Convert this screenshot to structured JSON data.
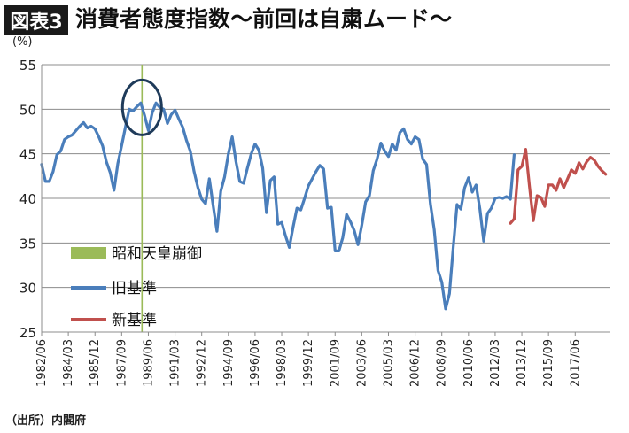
{
  "header": {
    "badge": "図表3",
    "title": "消費者態度指数～前回は自粛ムード～"
  },
  "source": "（出所）内閣府",
  "colors": {
    "old": "#4a7ebb",
    "new": "#c0504d",
    "event": "#9bbb59",
    "circle": "#1f3b5a"
  },
  "chart_data": {
    "type": "line",
    "ylabel": "(%)",
    "ylim": [
      25,
      55
    ],
    "yticks": [
      25,
      30,
      35,
      40,
      45,
      50,
      55
    ],
    "grid": true,
    "x_range": [
      "1982-06",
      "2019-09"
    ],
    "xticks": [
      "1982/06",
      "1984/03",
      "1985/12",
      "1987/09",
      "1989/06",
      "1991/03",
      "1992/12",
      "1994/09",
      "1996/06",
      "1998/03",
      "1999/12",
      "2001/09",
      "2003/06",
      "2005/03",
      "2006/12",
      "2008/09",
      "2010/06",
      "2012/03",
      "2013/12",
      "2015/09",
      "2017/06"
    ],
    "legend": [
      {
        "key": "event",
        "label": "昭和天皇崩御"
      },
      {
        "key": "old",
        "label": "旧基準"
      },
      {
        "key": "new",
        "label": "新基準"
      }
    ],
    "event": {
      "date": "1989-01"
    },
    "annotation": {
      "shape": "ellipse",
      "around": "1989-01",
      "value": 50.2
    },
    "series": [
      {
        "key": "old",
        "name": "旧基準",
        "points": [
          [
            "1982-06",
            43.8
          ],
          [
            "1982-09",
            41.9
          ],
          [
            "1982-12",
            41.9
          ],
          [
            "1983-03",
            43.0
          ],
          [
            "1983-06",
            44.9
          ],
          [
            "1983-09",
            45.3
          ],
          [
            "1983-12",
            46.6
          ],
          [
            "1984-03",
            46.9
          ],
          [
            "1984-06",
            47.1
          ],
          [
            "1984-09",
            47.6
          ],
          [
            "1984-12",
            48.1
          ],
          [
            "1985-03",
            48.5
          ],
          [
            "1985-06",
            47.9
          ],
          [
            "1985-09",
            48.1
          ],
          [
            "1985-12",
            47.8
          ],
          [
            "1986-03",
            46.9
          ],
          [
            "1986-06",
            45.9
          ],
          [
            "1986-09",
            44.1
          ],
          [
            "1986-12",
            42.9
          ],
          [
            "1987-03",
            40.9
          ],
          [
            "1987-06",
            43.9
          ],
          [
            "1987-09",
            45.9
          ],
          [
            "1987-12",
            48.0
          ],
          [
            "1988-03",
            50.0
          ],
          [
            "1988-06",
            49.8
          ],
          [
            "1988-09",
            50.3
          ],
          [
            "1988-12",
            50.7
          ],
          [
            "1989-03",
            49.3
          ],
          [
            "1989-06",
            47.6
          ],
          [
            "1989-09",
            49.6
          ],
          [
            "1989-12",
            50.7
          ],
          [
            "1990-03",
            50.2
          ],
          [
            "1990-06",
            50.0
          ],
          [
            "1990-09",
            48.4
          ],
          [
            "1990-12",
            49.4
          ],
          [
            "1991-03",
            49.9
          ],
          [
            "1991-06",
            48.9
          ],
          [
            "1991-09",
            48.0
          ],
          [
            "1991-12",
            46.5
          ],
          [
            "1992-03",
            45.3
          ],
          [
            "1992-06",
            43.0
          ],
          [
            "1992-09",
            41.2
          ],
          [
            "1992-12",
            39.9
          ],
          [
            "1993-03",
            39.4
          ],
          [
            "1993-06",
            42.2
          ],
          [
            "1993-09",
            39.2
          ],
          [
            "1993-12",
            36.3
          ],
          [
            "1994-03",
            40.8
          ],
          [
            "1994-06",
            42.4
          ],
          [
            "1994-09",
            45.0
          ],
          [
            "1994-12",
            46.9
          ],
          [
            "1995-03",
            44.1
          ],
          [
            "1995-06",
            41.9
          ],
          [
            "1995-09",
            41.7
          ],
          [
            "1995-12",
            43.4
          ],
          [
            "1996-03",
            45.0
          ],
          [
            "1996-06",
            46.1
          ],
          [
            "1996-09",
            45.4
          ],
          [
            "1996-12",
            43.4
          ],
          [
            "1997-03",
            38.4
          ],
          [
            "1997-06",
            42.0
          ],
          [
            "1997-09",
            42.4
          ],
          [
            "1997-12",
            37.1
          ],
          [
            "1998-03",
            37.3
          ],
          [
            "1998-06",
            35.8
          ],
          [
            "1998-09",
            34.5
          ],
          [
            "1998-12",
            36.8
          ],
          [
            "1999-03",
            38.9
          ],
          [
            "1999-06",
            38.7
          ],
          [
            "1999-09",
            40.0
          ],
          [
            "1999-12",
            41.4
          ],
          [
            "2000-03",
            42.2
          ],
          [
            "2000-06",
            43.0
          ],
          [
            "2000-09",
            43.7
          ],
          [
            "2000-12",
            43.3
          ],
          [
            "2001-03",
            38.9
          ],
          [
            "2001-06",
            39.0
          ],
          [
            "2001-09",
            34.1
          ],
          [
            "2001-12",
            34.1
          ],
          [
            "2002-03",
            35.6
          ],
          [
            "2002-06",
            38.2
          ],
          [
            "2002-09",
            37.4
          ],
          [
            "2002-12",
            36.4
          ],
          [
            "2003-03",
            34.8
          ],
          [
            "2003-06",
            37.0
          ],
          [
            "2003-09",
            39.6
          ],
          [
            "2003-12",
            40.3
          ],
          [
            "2004-03",
            43.1
          ],
          [
            "2004-06",
            44.4
          ],
          [
            "2004-09",
            46.2
          ],
          [
            "2004-12",
            45.3
          ],
          [
            "2005-03",
            44.7
          ],
          [
            "2005-06",
            46.1
          ],
          [
            "2005-09",
            45.4
          ],
          [
            "2005-12",
            47.4
          ],
          [
            "2006-03",
            47.8
          ],
          [
            "2006-06",
            46.6
          ],
          [
            "2006-09",
            46.1
          ],
          [
            "2006-12",
            46.9
          ],
          [
            "2007-03",
            46.6
          ],
          [
            "2007-06",
            44.4
          ],
          [
            "2007-09",
            43.8
          ],
          [
            "2007-12",
            39.4
          ],
          [
            "2008-03",
            36.5
          ],
          [
            "2008-06",
            31.9
          ],
          [
            "2008-09",
            30.6
          ],
          [
            "2008-12",
            27.6
          ],
          [
            "2009-03",
            29.3
          ],
          [
            "2009-06",
            34.5
          ],
          [
            "2009-09",
            39.3
          ],
          [
            "2009-12",
            38.8
          ],
          [
            "2010-03",
            41.2
          ],
          [
            "2010-06",
            42.3
          ],
          [
            "2010-09",
            40.7
          ],
          [
            "2010-12",
            41.5
          ],
          [
            "2011-03",
            38.8
          ],
          [
            "2011-06",
            35.2
          ],
          [
            "2011-09",
            38.3
          ],
          [
            "2011-12",
            38.9
          ],
          [
            "2012-03",
            40.0
          ],
          [
            "2012-06",
            40.1
          ],
          [
            "2012-09",
            40.0
          ],
          [
            "2012-12",
            40.2
          ],
          [
            "2013-03",
            39.9
          ],
          [
            "2013-06",
            44.9
          ]
        ]
      },
      {
        "key": "new",
        "name": "新基準",
        "points": [
          [
            "2013-03",
            37.2
          ],
          [
            "2013-06",
            37.7
          ],
          [
            "2013-09",
            43.2
          ],
          [
            "2013-12",
            43.6
          ],
          [
            "2014-03",
            45.5
          ],
          [
            "2014-06",
            41.3
          ],
          [
            "2014-09",
            37.5
          ],
          [
            "2014-12",
            40.3
          ],
          [
            "2015-03",
            40.1
          ],
          [
            "2015-06",
            39.1
          ],
          [
            "2015-09",
            41.5
          ],
          [
            "2015-12",
            41.5
          ],
          [
            "2016-03",
            40.9
          ],
          [
            "2016-06",
            42.2
          ],
          [
            "2016-09",
            41.2
          ],
          [
            "2016-12",
            42.2
          ],
          [
            "2017-03",
            43.2
          ],
          [
            "2017-06",
            42.8
          ],
          [
            "2017-09",
            44.0
          ],
          [
            "2017-12",
            43.3
          ],
          [
            "2018-03",
            44.1
          ],
          [
            "2018-06",
            44.6
          ],
          [
            "2018-09",
            44.3
          ],
          [
            "2018-12",
            43.6
          ],
          [
            "2019-03",
            43.1
          ],
          [
            "2019-06",
            42.7
          ]
        ]
      }
    ]
  }
}
